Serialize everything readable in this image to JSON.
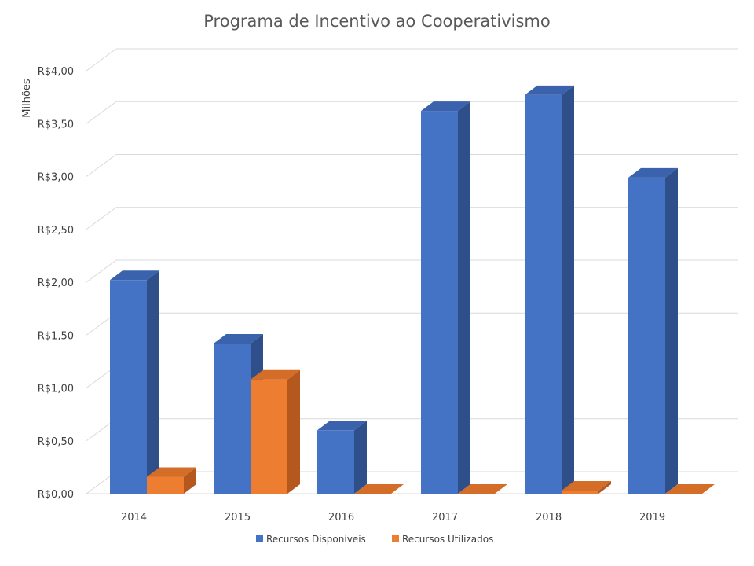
{
  "chart_data": {
    "type": "bar",
    "title": "Programa de Incentivo ao Cooperativismo",
    "ylabel": "Milhões",
    "xlabel": "",
    "categories": [
      "2014",
      "2015",
      "2016",
      "2017",
      "2018",
      "2019"
    ],
    "series": [
      {
        "name": "Recursos Disponíveis",
        "values": [
          2.02,
          1.42,
          0.6,
          3.62,
          3.77,
          2.99
        ]
      },
      {
        "name": "Recursos Utilizados",
        "values": [
          0.16,
          1.08,
          0.0,
          0.0,
          0.03,
          0.0
        ]
      }
    ],
    "ylim": [
      0,
      4
    ],
    "yticks": [
      "R$0,00",
      "R$0,50",
      "R$1,00",
      "R$1,50",
      "R$2,00",
      "R$2,50",
      "R$3,00",
      "R$3,50",
      "R$4,00"
    ],
    "grid": true,
    "legend_position": "bottom",
    "three_d": true,
    "colors": {
      "series_0": "#4472c4",
      "series_0_top": "#3a62ad",
      "series_0_side": "#2f4f8a",
      "series_1": "#ed7d31",
      "series_1_top": "#d46d27",
      "series_1_side": "#b4581d",
      "grid": "#d9d9d9"
    }
  }
}
